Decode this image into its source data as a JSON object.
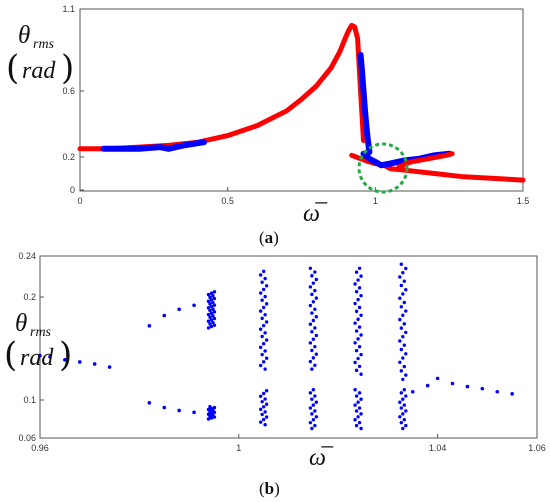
{
  "chart_data": [
    {
      "type": "line",
      "panel_caption": {
        "open": "(",
        "letter": "a",
        "close": ")"
      },
      "ylabel": {
        "symbol": "θ",
        "subscript": "rms",
        "unit": "rad",
        "open": "(",
        "close": ")"
      },
      "xlabel": "ω̅",
      "xlim": [
        0,
        1.5
      ],
      "ylim": [
        0,
        1.1
      ],
      "xticks": [
        0,
        0.5,
        1,
        1.5
      ],
      "xtick_labels": [
        "0",
        "0.5",
        "1",
        "1.5"
      ],
      "yticks": [
        0,
        0.2,
        0.6,
        1.1
      ],
      "ytick_labels": [
        "0",
        "0.2",
        "0.6",
        "1.1"
      ],
      "grid": false,
      "annotation": "dashed green circle near omega = 1.0, theta = 0.17",
      "series": [
        {
          "color": "#ff0000",
          "x": [
            0,
            0.1,
            0.2,
            0.3,
            0.4,
            0.5,
            0.6,
            0.7,
            0.75,
            0.8,
            0.85,
            0.88,
            0.9,
            0.91,
            0.92,
            0.93,
            0.94,
            0.95,
            0.96
          ],
          "values": [
            0.25,
            0.25,
            0.26,
            0.27,
            0.29,
            0.33,
            0.39,
            0.48,
            0.55,
            0.63,
            0.74,
            0.84,
            0.93,
            0.97,
            1.0,
            0.99,
            0.92,
            0.6,
            0.3
          ]
        },
        {
          "color": "#ff0000",
          "x": [
            0.92,
            0.95,
            0.98,
            1.0,
            1.03,
            1.05,
            1.1,
            1.2,
            1.3,
            1.4,
            1.5
          ],
          "values": [
            0.21,
            0.19,
            0.17,
            0.16,
            0.15,
            0.13,
            0.12,
            0.1,
            0.08,
            0.07,
            0.06
          ]
        },
        {
          "color": "#0000ff",
          "x": [
            0.95,
            0.955,
            0.96,
            0.965,
            0.97,
            0.975,
            0.98
          ],
          "values": [
            0.82,
            0.72,
            0.6,
            0.48,
            0.38,
            0.3,
            0.23
          ]
        },
        {
          "color": "#0000ff",
          "x": [
            0.96,
            0.98,
            1.0,
            1.02,
            1.05,
            1.1,
            1.15,
            1.2,
            1.25
          ],
          "values": [
            0.22,
            0.19,
            0.17,
            0.15,
            0.16,
            0.18,
            0.19,
            0.21,
            0.22
          ]
        },
        {
          "color": "#0000ff",
          "x": [
            0.08,
            0.12,
            0.2,
            0.27,
            0.3,
            0.35,
            0.42
          ],
          "values": [
            0.25,
            0.25,
            0.25,
            0.26,
            0.25,
            0.27,
            0.29
          ]
        },
        {
          "color": "#ff0000",
          "x": [
            1.08,
            1.12,
            1.18,
            1.24,
            1.26
          ],
          "values": [
            0.14,
            0.17,
            0.19,
            0.21,
            0.22
          ]
        }
      ]
    },
    {
      "type": "scatter",
      "panel_caption": {
        "open": "(",
        "letter": "b",
        "close": ")"
      },
      "ylabel": {
        "symbol": "θ",
        "subscript": "rms",
        "unit": "rad",
        "open": "(",
        "close": ")"
      },
      "xlabel": "ω̅",
      "xlim": [
        0.96,
        1.06
      ],
      "ylim": [
        0.06,
        0.24
      ],
      "xticks": [
        0.96,
        1.0,
        1.04,
        1.06
      ],
      "xtick_labels": [
        "0.96",
        "1",
        "1.04",
        "1.06"
      ],
      "yticks": [
        0.06,
        0.1,
        0.2,
        0.24
      ],
      "ytick_labels": [
        "0.06",
        "0.1",
        "0.2",
        "0.24"
      ],
      "grid": false,
      "marker_color": "#0000ff",
      "points": [
        [
          0.96,
          0.143
        ],
        [
          0.962,
          0.142
        ],
        [
          0.965,
          0.139
        ],
        [
          0.968,
          0.137
        ],
        [
          0.971,
          0.135
        ],
        [
          0.974,
          0.132
        ],
        [
          0.982,
          0.172
        ],
        [
          0.985,
          0.182
        ],
        [
          0.988,
          0.188
        ],
        [
          0.991,
          0.192
        ],
        [
          0.982,
          0.097
        ],
        [
          0.985,
          0.092
        ],
        [
          0.988,
          0.089
        ],
        [
          0.991,
          0.087
        ],
        [
          1.04,
          0.121
        ],
        [
          1.043,
          0.116
        ],
        [
          1.046,
          0.113
        ],
        [
          1.049,
          0.111
        ],
        [
          1.052,
          0.108
        ],
        [
          1.055,
          0.106
        ],
        [
          1.035,
          0.108
        ],
        [
          1.038,
          0.114
        ]
      ],
      "bands": [
        {
          "x": 0.9945,
          "upper": [
            0.17,
            0.205
          ],
          "lower": [
            0.08,
            0.093
          ]
        },
        {
          "x": 1.005,
          "upper": [
            0.13,
            0.225
          ],
          "lower": [
            0.074,
            0.109
          ]
        },
        {
          "x": 1.015,
          "upper": [
            0.13,
            0.228
          ],
          "lower": [
            0.07,
            0.11
          ]
        },
        {
          "x": 1.024,
          "upper": [
            0.125,
            0.228
          ],
          "lower": [
            0.07,
            0.11
          ]
        },
        {
          "x": 1.033,
          "upper": [
            0.12,
            0.232
          ],
          "lower": [
            0.07,
            0.11
          ]
        }
      ]
    }
  ]
}
